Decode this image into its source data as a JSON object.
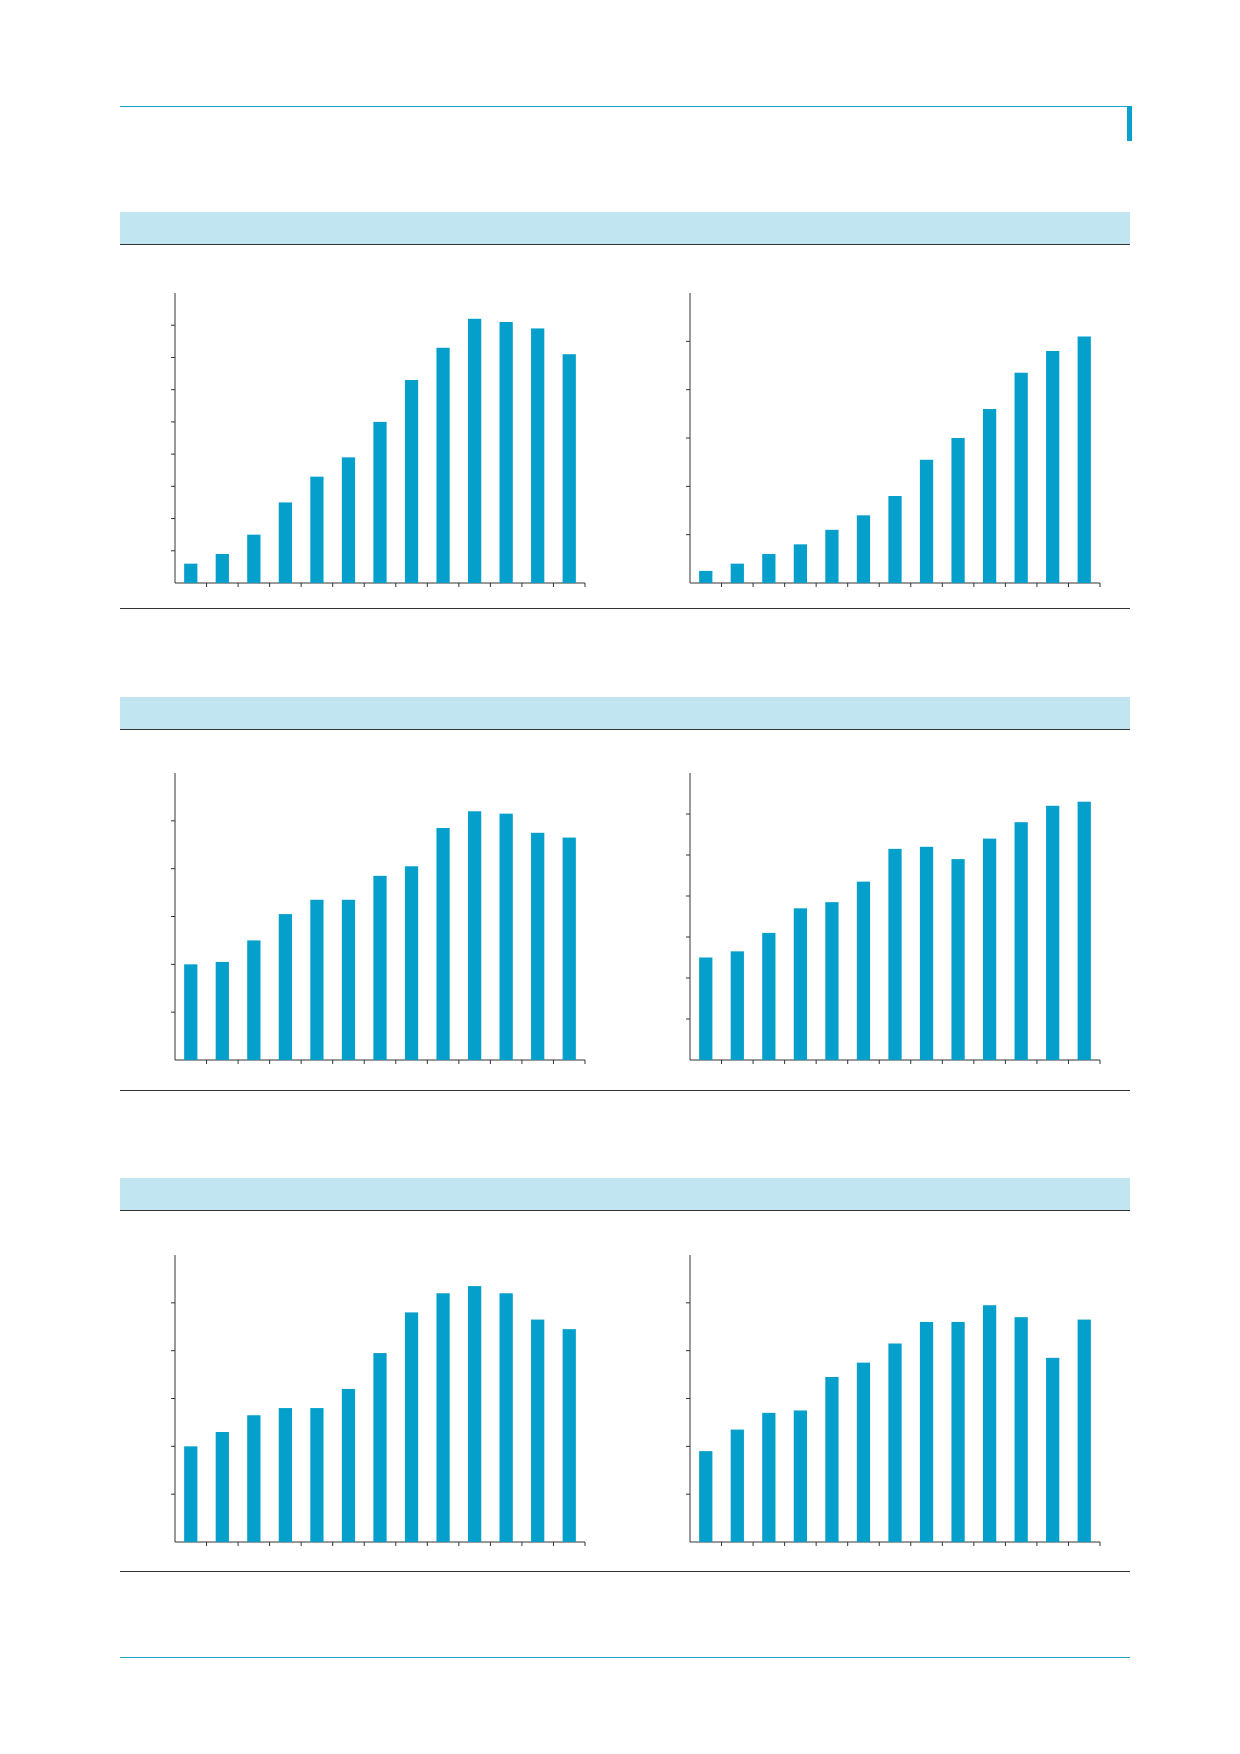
{
  "colors": {
    "accent": "#049fcb",
    "band": "#c1e6f1",
    "rule": "#1da0d0"
  },
  "sections": [
    {
      "title": ""
    },
    {
      "title": ""
    },
    {
      "title": ""
    }
  ],
  "chart_data": [
    {
      "type": "bar",
      "title": "",
      "xlabel": "",
      "ylabel": "",
      "ylim": [
        0,
        9
      ],
      "grid": false,
      "values": [
        0.6,
        0.9,
        1.5,
        2.5,
        3.3,
        3.9,
        5.0,
        6.3,
        7.3,
        8.2,
        8.1,
        7.9,
        7.1
      ]
    },
    {
      "type": "bar",
      "title": "",
      "xlabel": "",
      "ylabel": "",
      "ylim": [
        0,
        6
      ],
      "grid": false,
      "values": [
        0.25,
        0.4,
        0.6,
        0.8,
        1.1,
        1.4,
        1.8,
        2.55,
        3.0,
        3.6,
        4.35,
        4.8,
        5.1
      ]
    },
    {
      "type": "bar",
      "title": "",
      "xlabel": "",
      "ylabel": "",
      "ylim": [
        0,
        6
      ],
      "grid": false,
      "values": [
        2.0,
        2.05,
        2.5,
        3.05,
        3.35,
        3.35,
        3.85,
        4.05,
        4.85,
        5.2,
        5.15,
        4.75,
        4.65
      ]
    },
    {
      "type": "bar",
      "title": "",
      "xlabel": "",
      "ylabel": "",
      "ylim": [
        0,
        7
      ],
      "grid": false,
      "values": [
        2.5,
        2.65,
        3.1,
        3.7,
        3.85,
        4.35,
        5.15,
        5.2,
        4.9,
        5.4,
        5.8,
        6.2,
        6.3
      ]
    },
    {
      "type": "bar",
      "title": "",
      "xlabel": "",
      "ylabel": "",
      "ylim": [
        0,
        6
      ],
      "grid": false,
      "values": [
        2.0,
        2.3,
        2.65,
        2.8,
        2.8,
        3.2,
        3.95,
        4.8,
        5.2,
        5.35,
        5.2,
        4.65,
        4.45
      ]
    },
    {
      "type": "bar",
      "title": "",
      "xlabel": "",
      "ylabel": "",
      "ylim": [
        0,
        6
      ],
      "grid": false,
      "values": [
        1.9,
        2.35,
        2.7,
        2.75,
        3.45,
        3.75,
        4.15,
        4.6,
        4.6,
        4.95,
        4.7,
        3.85,
        4.65
      ]
    }
  ]
}
